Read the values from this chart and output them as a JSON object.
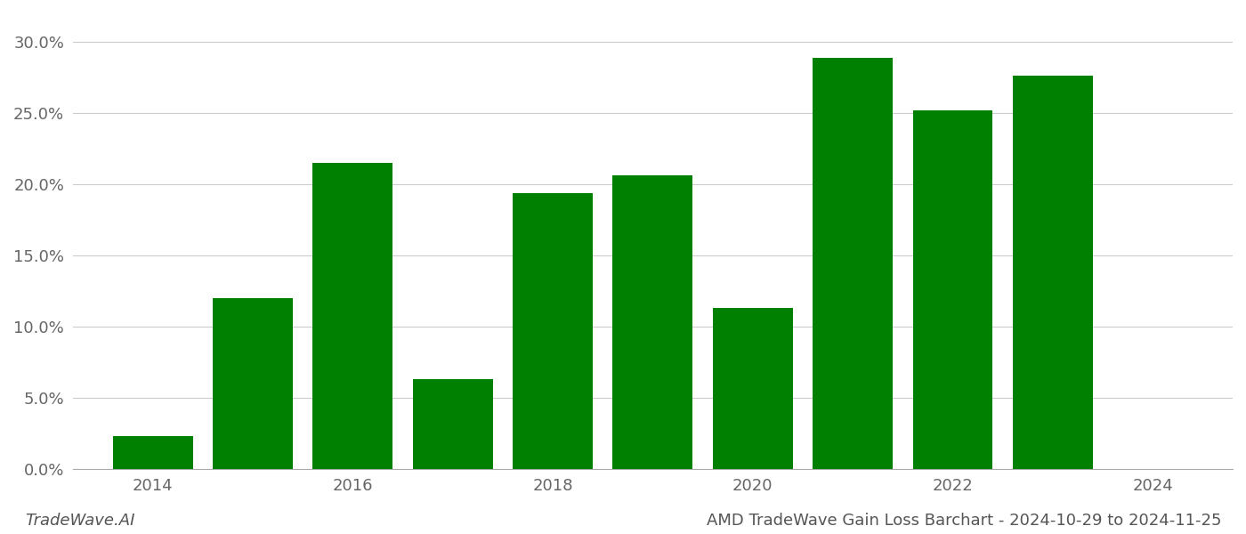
{
  "years": [
    2014,
    2015,
    2016,
    2017,
    2018,
    2019,
    2020,
    2021,
    2022,
    2023
  ],
  "values": [
    0.023,
    0.12,
    0.215,
    0.063,
    0.194,
    0.206,
    0.113,
    0.289,
    0.252,
    0.276
  ],
  "bar_color": "#008000",
  "background_color": "#ffffff",
  "grid_color": "#cccccc",
  "title": "AMD TradeWave Gain Loss Barchart - 2024-10-29 to 2024-11-25",
  "watermark": "TradeWave.AI",
  "ylim": [
    0.0,
    0.32
  ],
  "yticks": [
    0.0,
    0.05,
    0.1,
    0.15,
    0.2,
    0.25,
    0.3
  ],
  "xticks_positions": [
    2014,
    2016,
    2018,
    2020,
    2022,
    2024
  ],
  "xtick_fontsize": 13,
  "ytick_fontsize": 13,
  "title_fontsize": 13,
  "watermark_fontsize": 13
}
